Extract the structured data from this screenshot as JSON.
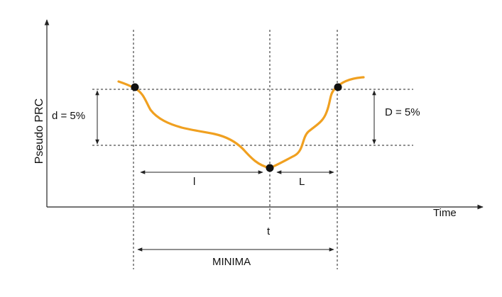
{
  "axes": {
    "y_label": "Pseudo PRC",
    "x_label": "Time"
  },
  "annotations": {
    "d_left": "d = 5%",
    "d_right": "D = 5%",
    "l_lower": "l",
    "l_upper": "L",
    "t_mark": "t",
    "minima": "MINIMA"
  },
  "colors": {
    "curve": "#f0a020",
    "points": "#111111",
    "lines": "#222222"
  }
}
